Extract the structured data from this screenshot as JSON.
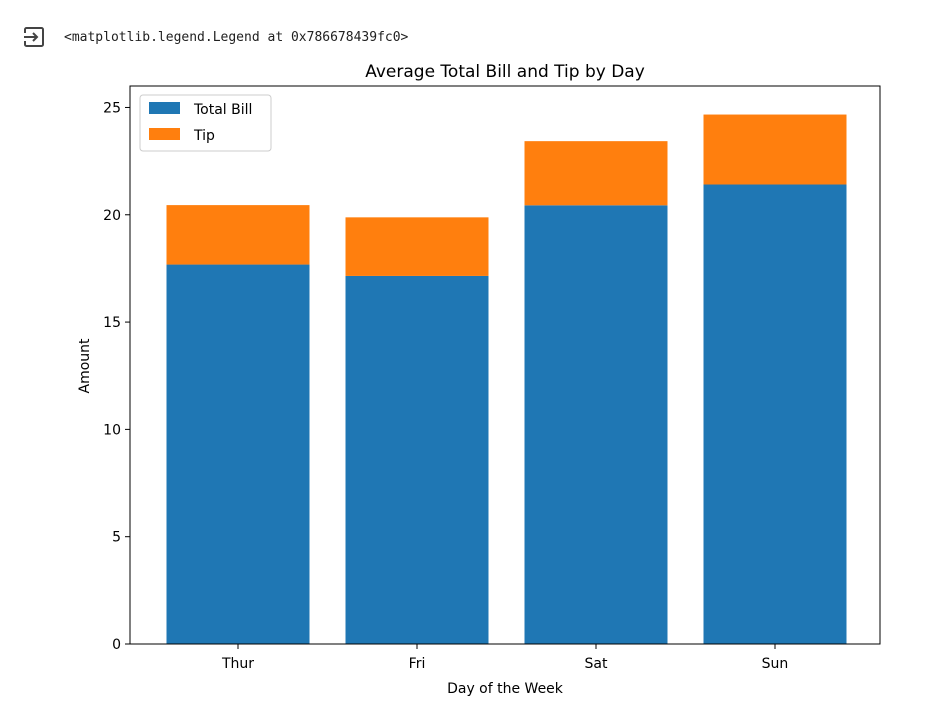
{
  "output": {
    "icon": "output-redirect-icon",
    "text": "<matplotlib.legend.Legend at 0x786678439fc0>"
  },
  "chart_data": {
    "type": "bar",
    "stacked": true,
    "title": "Average Total Bill and Tip by Day",
    "xlabel": "Day of the Week",
    "ylabel": "Amount",
    "categories": [
      "Thur",
      "Fri",
      "Sat",
      "Sun"
    ],
    "series": [
      {
        "name": "Total Bill",
        "values": [
          17.68,
          17.15,
          20.44,
          21.41
        ],
        "color": "#1f77b4"
      },
      {
        "name": "Tip",
        "values": [
          2.77,
          2.73,
          2.99,
          3.26
        ],
        "color": "#ff7f0e"
      }
    ],
    "ylim": [
      0,
      26
    ],
    "yticks": [
      0,
      5,
      10,
      15,
      20,
      25
    ],
    "legend": "top-left",
    "grid": false
  }
}
